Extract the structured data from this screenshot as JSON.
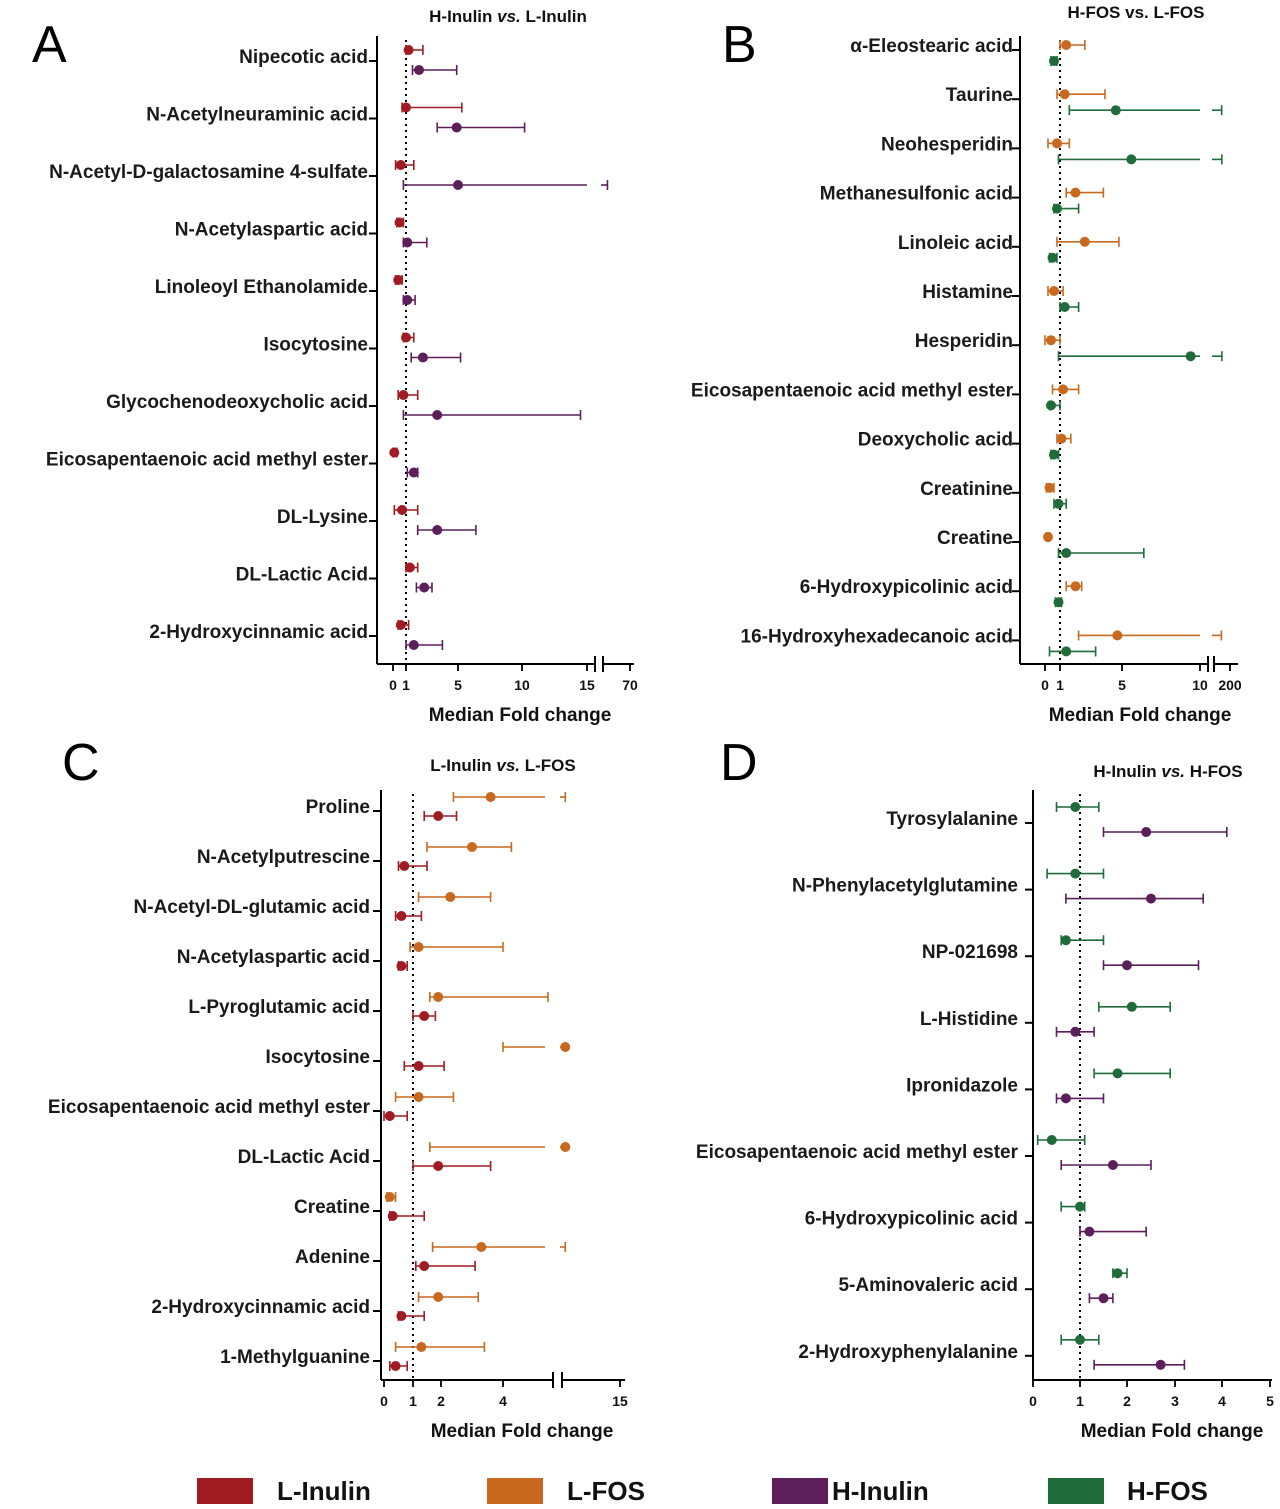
{
  "colors": {
    "L-Inulin": "#a01c22",
    "L-FOS": "#c8691f",
    "H-Inulin": "#5c1f5a",
    "H-FOS": "#1f6b3a"
  },
  "legend": [
    "L-Inulin",
    "L-FOS",
    "H-Inulin",
    "H-FOS"
  ],
  "chart_data": [
    {
      "type": "forest",
      "letter": "A",
      "title_parts": [
        "H-Inulin ",
        "vs.",
        " L-Inulin"
      ],
      "xlabel": "Median Fold change",
      "ticks": [
        "0",
        "1",
        "5",
        "10",
        "15",
        "70"
      ],
      "reference_line": 1,
      "categories": [
        "Nipecotic acid",
        "N-Acetylneuraminic acid",
        "N-Acetyl-D-galactosamine 4-sulfate",
        "N-Acetylaspartic acid",
        "Linoleoyl Ethanolamide",
        "Isocytosine",
        "Glycochenodeoxycholic acid",
        "Eicosapentaenoic acid methyl ester",
        "DL-Lysine",
        "DL-Lactic Acid",
        "2-Hydroxycinnamic acid"
      ],
      "series": [
        {
          "name": "L-Inulin",
          "values": [
            {
              "median": 1.2,
              "low": 1.0,
              "high": 2.3
            },
            {
              "median": 1.0,
              "low": 0.7,
              "high": 5.3
            },
            {
              "median": 0.6,
              "low": 0.2,
              "high": 1.6
            },
            {
              "median": 0.5,
              "low": 0.3,
              "high": 0.8
            },
            {
              "median": 0.4,
              "low": 0.2,
              "high": 0.7
            },
            {
              "median": 1.0,
              "low": 0.8,
              "high": 1.6
            },
            {
              "median": 0.8,
              "low": 0.4,
              "high": 1.9
            },
            {
              "median": 0.1,
              "low": 0.0,
              "high": 0.3
            },
            {
              "median": 0.7,
              "low": 0.1,
              "high": 1.9
            },
            {
              "median": 1.3,
              "low": 1.0,
              "high": 1.9
            },
            {
              "median": 0.6,
              "low": 0.4,
              "high": 1.2
            }
          ]
        },
        {
          "name": "H-Inulin",
          "values": [
            {
              "median": 2.0,
              "low": 1.5,
              "high": 4.9
            },
            {
              "median": 4.9,
              "low": 3.4,
              "high": 10.2
            },
            {
              "median": 5.0,
              "low": 0.8,
              "high": 68.0
            },
            {
              "median": 1.1,
              "low": 0.8,
              "high": 2.6
            },
            {
              "median": 1.1,
              "low": 0.8,
              "high": 1.7
            },
            {
              "median": 2.3,
              "low": 1.4,
              "high": 5.2
            },
            {
              "median": 3.4,
              "low": 0.8,
              "high": 14.5
            },
            {
              "median": 1.6,
              "low": 1.1,
              "high": 1.9
            },
            {
              "median": 3.4,
              "low": 1.9,
              "high": 6.4
            },
            {
              "median": 2.4,
              "low": 1.8,
              "high": 3.0
            },
            {
              "median": 1.6,
              "low": 1.0,
              "high": 3.8
            }
          ]
        }
      ]
    },
    {
      "type": "forest",
      "letter": "B",
      "title_parts": [
        "H-FOS vs. L-FOS"
      ],
      "xlabel": "Median Fold change",
      "ticks": [
        "0",
        "1",
        "5",
        "10",
        "200"
      ],
      "reference_line": 1,
      "categories": [
        "α-Eleostearic acid",
        "Taurine",
        "Neohesperidin",
        "Methanesulfonic acid",
        "Linoleic acid",
        "Histamine",
        "Hesperidin",
        "Eicosapentaenoic acid methyl ester",
        "Deoxycholic acid",
        "Creatinine",
        "Creatine",
        "6-Hydroxypicolinic acid",
        "16-Hydroxyhexadecanoic acid"
      ],
      "series": [
        {
          "name": "L-FOS",
          "values": [
            {
              "median": 1.4,
              "low": 1.0,
              "high": 2.6
            },
            {
              "median": 1.3,
              "low": 0.8,
              "high": 3.9
            },
            {
              "median": 0.8,
              "low": 0.2,
              "high": 1.6
            },
            {
              "median": 2.0,
              "low": 1.4,
              "high": 3.8
            },
            {
              "median": 2.6,
              "low": 0.8,
              "high": 4.8
            },
            {
              "median": 0.6,
              "low": 0.2,
              "high": 1.2
            },
            {
              "median": 0.4,
              "low": 0.0,
              "high": 1.0
            },
            {
              "median": 1.2,
              "low": 0.5,
              "high": 2.2
            },
            {
              "median": 1.1,
              "low": 0.8,
              "high": 1.7
            },
            {
              "median": 0.3,
              "low": 0.1,
              "high": 0.6
            },
            {
              "median": 0.2,
              "low": 0.1,
              "high": 0.3
            },
            {
              "median": 2.0,
              "low": 1.4,
              "high": 2.4
            },
            {
              "median": 4.7,
              "low": 2.2,
              "high": 160
            }
          ]
        },
        {
          "name": "H-FOS",
          "values": [
            {
              "median": 0.6,
              "low": 0.4,
              "high": 0.8
            },
            {
              "median": 4.6,
              "low": 1.6,
              "high": 180
            },
            {
              "median": 5.6,
              "low": 0.9,
              "high": 195
            },
            {
              "median": 0.8,
              "low": 0.6,
              "high": 2.2
            },
            {
              "median": 0.5,
              "low": 0.3,
              "high": 0.8
            },
            {
              "median": 1.3,
              "low": 1.0,
              "high": 2.2
            },
            {
              "median": 9.4,
              "low": 0.9,
              "high": 198
            },
            {
              "median": 0.4,
              "low": 0.3,
              "high": 1.0
            },
            {
              "median": 0.6,
              "low": 0.4,
              "high": 0.9
            },
            {
              "median": 0.9,
              "low": 0.6,
              "high": 1.4
            },
            {
              "median": 1.4,
              "low": 0.9,
              "high": 6.4
            },
            {
              "median": 0.9,
              "low": 0.7,
              "high": 1.1
            },
            {
              "median": 1.4,
              "low": 0.3,
              "high": 3.3
            }
          ]
        }
      ]
    },
    {
      "type": "forest",
      "letter": "C",
      "title_parts": [
        "L-Inulin ",
        "vs.",
        " L-FOS"
      ],
      "xlabel": "Median Fold change",
      "ticks": [
        "0",
        "1",
        "2",
        "4",
        "15"
      ],
      "reference_line": 1,
      "categories": [
        "Proline",
        "N-Acetylputrescine",
        "N-Acetyl-DL-glutamic acid",
        "N-Acetylaspartic acid",
        "L-Pyroglutamic acid",
        "Isocytosine",
        "Eicosapentaenoic acid methyl ester",
        "DL-Lactic Acid",
        "Creatine",
        "Adenine",
        "2-Hydroxycinnamic acid",
        "1-Methylguanine"
      ],
      "series": [
        {
          "name": "L-FOS",
          "values": [
            {
              "median": 3.6,
              "low": 2.4,
              "high": 14.2
            },
            {
              "median": 3.0,
              "low": 1.5,
              "high": 4.3
            },
            {
              "median": 2.3,
              "low": 1.2,
              "high": 3.6
            },
            {
              "median": 1.2,
              "low": 0.9,
              "high": 4.0
            },
            {
              "median": 1.9,
              "low": 1.6,
              "high": 5.6
            },
            {
              "median": 14.0,
              "low": 4.0,
              "high": 14.9
            },
            {
              "median": 1.2,
              "low": 0.4,
              "high": 2.4
            },
            {
              "median": 14.3,
              "low": 1.6,
              "high": 15.2
            },
            {
              "median": 0.2,
              "low": 0.1,
              "high": 0.4
            },
            {
              "median": 3.3,
              "low": 1.7,
              "high": 14.0
            },
            {
              "median": 1.9,
              "low": 1.2,
              "high": 3.2
            },
            {
              "median": 1.3,
              "low": 0.4,
              "high": 3.4
            }
          ]
        },
        {
          "name": "L-Inulin",
          "values": [
            {
              "median": 1.9,
              "low": 1.4,
              "high": 2.5
            },
            {
              "median": 0.7,
              "low": 0.5,
              "high": 1.5
            },
            {
              "median": 0.6,
              "low": 0.4,
              "high": 1.3
            },
            {
              "median": 0.6,
              "low": 0.5,
              "high": 0.8
            },
            {
              "median": 1.4,
              "low": 1.0,
              "high": 1.8
            },
            {
              "median": 1.2,
              "low": 0.7,
              "high": 2.1
            },
            {
              "median": 0.2,
              "low": 0.0,
              "high": 0.8
            },
            {
              "median": 1.9,
              "low": 1.0,
              "high": 3.6
            },
            {
              "median": 0.3,
              "low": 0.2,
              "high": 1.4
            },
            {
              "median": 1.4,
              "low": 1.1,
              "high": 3.1
            },
            {
              "median": 0.6,
              "low": 0.5,
              "high": 1.4
            },
            {
              "median": 0.4,
              "low": 0.2,
              "high": 0.8
            }
          ]
        }
      ]
    },
    {
      "type": "forest",
      "letter": "D",
      "title_parts": [
        "H-Inulin ",
        "vs.",
        " H-FOS"
      ],
      "xlabel": "Median Fold change",
      "ticks": [
        "0",
        "1",
        "2",
        "3",
        "4",
        "5"
      ],
      "reference_line": 1,
      "categories": [
        "Tyrosylalanine",
        "N-Phenylacetylglutamine",
        "NP-021698",
        "L-Histidine",
        "Ipronidazole",
        "Eicosapentaenoic acid methyl ester",
        "6-Hydroxypicolinic acid",
        "5-Aminovaleric acid",
        "2-Hydroxyphenylalanine"
      ],
      "series": [
        {
          "name": "H-FOS",
          "values": [
            {
              "median": 0.9,
              "low": 0.5,
              "high": 1.4
            },
            {
              "median": 0.9,
              "low": 0.3,
              "high": 1.5
            },
            {
              "median": 0.7,
              "low": 0.6,
              "high": 1.5
            },
            {
              "median": 2.1,
              "low": 1.4,
              "high": 2.9
            },
            {
              "median": 1.8,
              "low": 1.3,
              "high": 2.9
            },
            {
              "median": 0.4,
              "low": 0.1,
              "high": 1.1
            },
            {
              "median": 1.0,
              "low": 0.6,
              "high": 1.1
            },
            {
              "median": 1.8,
              "low": 1.7,
              "high": 2.0
            },
            {
              "median": 1.0,
              "low": 0.6,
              "high": 1.4
            }
          ]
        },
        {
          "name": "H-Inulin",
          "values": [
            {
              "median": 2.4,
              "low": 1.5,
              "high": 4.1
            },
            {
              "median": 2.5,
              "low": 0.7,
              "high": 3.6
            },
            {
              "median": 2.0,
              "low": 1.5,
              "high": 3.5
            },
            {
              "median": 0.9,
              "low": 0.5,
              "high": 1.3
            },
            {
              "median": 0.7,
              "low": 0.5,
              "high": 1.5
            },
            {
              "median": 1.7,
              "low": 0.6,
              "high": 2.5
            },
            {
              "median": 1.2,
              "low": 1.0,
              "high": 2.4
            },
            {
              "median": 1.5,
              "low": 1.2,
              "high": 1.7
            },
            {
              "median": 2.7,
              "low": 1.3,
              "high": 3.2
            }
          ]
        }
      ]
    }
  ]
}
